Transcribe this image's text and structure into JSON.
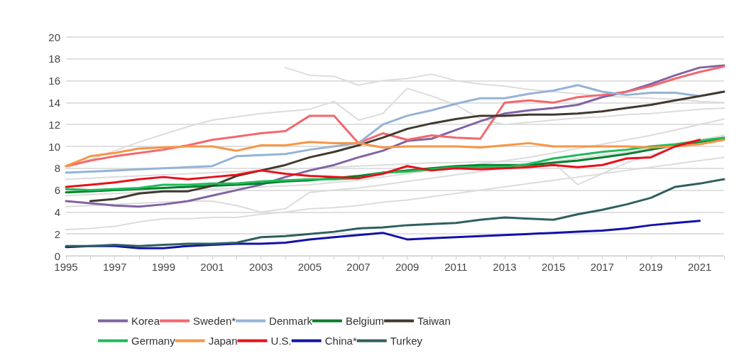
{
  "chart_data": {
    "type": "line",
    "categories": [
      "1995",
      null,
      "1997",
      null,
      "1999",
      null,
      "2001",
      null,
      "2003",
      null,
      "2005",
      null,
      "2007",
      null,
      "2009",
      null,
      "2011",
      null,
      "2013",
      null,
      "2015",
      null,
      "2017",
      null,
      "2019",
      null,
      "2021",
      null
    ],
    "ylim": [
      0,
      20
    ],
    "yticks": [
      0,
      2,
      4,
      6,
      8,
      10,
      12,
      14,
      16,
      18,
      20
    ],
    "grid": "y",
    "legend": "bottom",
    "marker": "none",
    "line_style": "solid",
    "series": [
      {
        "name": "Korea",
        "color": "#8064a2",
        "values": [
          5,
          4.8,
          4.6,
          4.5,
          4.7,
          5,
          5.5,
          6,
          6.5,
          7.2,
          7.8,
          8.3,
          9,
          9.6,
          10.5,
          10.7,
          11.5,
          12.3,
          13,
          13.3,
          13.5,
          13.8,
          14.5,
          15,
          15.7,
          16.5,
          17.2,
          17.4
        ]
      },
      {
        "name": "Sweden*",
        "color": "#f4676c",
        "values": [
          8.2,
          8.7,
          9.1,
          9.4,
          9.7,
          10.1,
          10.6,
          10.9,
          11.2,
          11.4,
          12.8,
          12.8,
          10.3,
          11.2,
          10.6,
          11,
          10.8,
          10.7,
          14,
          14.2,
          14,
          14.5,
          14.7,
          15,
          15.5,
          16.2,
          16.8,
          17.3
        ]
      },
      {
        "name": "Denmark",
        "color": "#95b3d7",
        "values": [
          7.6,
          7.7,
          7.8,
          7.9,
          8,
          8.1,
          8.2,
          9.1,
          9.2,
          9.3,
          9.7,
          10,
          10.3,
          12,
          12.8,
          13.3,
          13.9,
          14.4,
          14.4,
          14.8,
          15.1,
          15.6,
          15,
          14.7,
          14.9,
          14.9,
          14.6,
          null
        ]
      },
      {
        "name": "Belgium",
        "color": "#00802b",
        "values": [
          5.8,
          5.9,
          6,
          6.1,
          6.2,
          6.3,
          6.4,
          6.5,
          6.6,
          6.8,
          6.9,
          7.1,
          7.3,
          7.6,
          7.8,
          8,
          8.2,
          8.3,
          8.3,
          8.3,
          8.5,
          8.7,
          9,
          9.3,
          9.7,
          10.1,
          10.4,
          10.7
        ]
      },
      {
        "name": "Taiwan",
        "color": "#403a2e",
        "values": [
          null,
          5,
          5.2,
          5.7,
          5.9,
          5.9,
          6.4,
          7.3,
          7.8,
          8.3,
          9,
          9.5,
          10.1,
          10.8,
          11.6,
          12.1,
          12.5,
          12.8,
          12.8,
          12.9,
          12.9,
          13,
          13.2,
          13.5,
          13.8,
          14.2,
          14.6,
          15
        ]
      },
      {
        "name": "Germany",
        "color": "#1fba5b",
        "values": [
          6.1,
          6,
          6.1,
          6.2,
          6.5,
          6.5,
          6.6,
          6.6,
          6.8,
          6.9,
          7,
          7,
          7.1,
          7.6,
          7.7,
          7.9,
          8.1,
          8.1,
          8.1,
          8.4,
          8.9,
          9.2,
          9.5,
          9.7,
          10,
          10.2,
          10.5,
          10.8
        ]
      },
      {
        "name": "Japan",
        "color": "#f79646",
        "values": [
          8.2,
          9.1,
          9.4,
          9.8,
          9.9,
          10,
          10,
          9.6,
          10.1,
          10.1,
          10.4,
          10.3,
          10.3,
          9.9,
          10,
          10,
          10,
          9.9,
          10.1,
          10.3,
          10,
          10,
          10,
          10,
          9.9,
          10,
          10.2,
          10.6
        ]
      },
      {
        "name": "U.S.",
        "color": "#e8101b",
        "values": [
          6.3,
          6.5,
          6.7,
          7,
          7.2,
          7,
          7.2,
          7.4,
          7.8,
          7.5,
          7.3,
          7.2,
          7.1,
          7.5,
          8.2,
          7.8,
          8,
          7.9,
          8,
          8.1,
          8.3,
          8.1,
          8.3,
          8.9,
          9,
          10,
          10.6,
          null
        ]
      },
      {
        "name": "China*",
        "color": "#1212a8",
        "values": [
          0.8,
          0.9,
          0.9,
          0.7,
          0.7,
          0.9,
          1,
          1.1,
          1.1,
          1.2,
          1.5,
          1.7,
          1.9,
          2.1,
          1.5,
          1.6,
          1.7,
          1.8,
          1.9,
          2,
          2.1,
          2.2,
          2.3,
          2.5,
          2.8,
          3,
          3.2,
          null
        ]
      },
      {
        "name": "Turkey",
        "color": "#2f5f5f",
        "values": [
          0.9,
          0.9,
          1,
          0.9,
          1,
          1.1,
          1.1,
          1.2,
          1.7,
          1.8,
          2,
          2.2,
          2.5,
          2.6,
          2.8,
          2.9,
          3,
          3.3,
          3.5,
          3.4,
          3.3,
          3.8,
          4.2,
          4.7,
          5.3,
          6.3,
          6.6,
          7
        ]
      },
      {
        "color": "#dcdcdc",
        "values": [
          null,
          null,
          null,
          null,
          null,
          null,
          null,
          null,
          null,
          17.2,
          16.5,
          16.4,
          15.6,
          16,
          16.2,
          16.6,
          16,
          15.7,
          15.5,
          15.2,
          15,
          14.8,
          14.6,
          14.5,
          14.4,
          14.3,
          14.1,
          14
        ]
      },
      {
        "color": "#dcdcdc",
        "values": [
          8,
          8.8,
          9.6,
          10.4,
          11.1,
          11.8,
          12.4,
          12.7,
          13,
          13.2,
          13.4,
          14.1,
          12.4,
          13,
          15.3,
          14.6,
          13.8,
          12.5,
          12,
          12.2,
          12.4,
          12.6,
          12.7,
          12.9,
          13,
          13.2,
          13.4,
          13.5
        ]
      },
      {
        "color": "#dcdcdc",
        "values": [
          2.4,
          2.5,
          2.7,
          3.1,
          3.4,
          3.4,
          3.5,
          3.5,
          3.8,
          4,
          4.3,
          4.4,
          4.6,
          4.9,
          5.1,
          5.4,
          5.7,
          6,
          6.3,
          6.6,
          6.9,
          7.2,
          7.5,
          7.8,
          8.1,
          8.4,
          8.7,
          9
        ]
      },
      {
        "color": "#dcdcdc",
        "values": [
          4.5,
          4.6,
          4.7,
          4.8,
          4.9,
          5,
          5,
          4.6,
          4,
          4.3,
          5.8,
          6,
          6.2,
          6.5,
          6.8,
          7.1,
          7.4,
          7.7,
          8,
          8.3,
          8.6,
          8.9,
          9.2,
          9.5,
          9.8,
          10.2,
          10.6,
          11
        ]
      },
      {
        "color": "#dcdcdc",
        "values": [
          7,
          7.1,
          7.2,
          7.3,
          7.4,
          7.5,
          7.6,
          7.7,
          7.8,
          7.9,
          8,
          8.1,
          8.2,
          8.3,
          8.4,
          8.5,
          8.5,
          8.6,
          8.6,
          8.6,
          8.5,
          6.5,
          7.5,
          8.5,
          9.2,
          10,
          10.5,
          11
        ]
      },
      {
        "color": "#dcdcdc",
        "values": [
          5.5,
          5.6,
          5.7,
          5.8,
          5.9,
          6,
          6.1,
          6.2,
          6.3,
          6.4,
          6.5,
          6.7,
          6.9,
          7.2,
          7.5,
          7.8,
          8.1,
          8.4,
          8.7,
          9,
          9.4,
          9.8,
          10.2,
          10.6,
          11,
          11.5,
          12,
          12.5
        ]
      }
    ]
  }
}
